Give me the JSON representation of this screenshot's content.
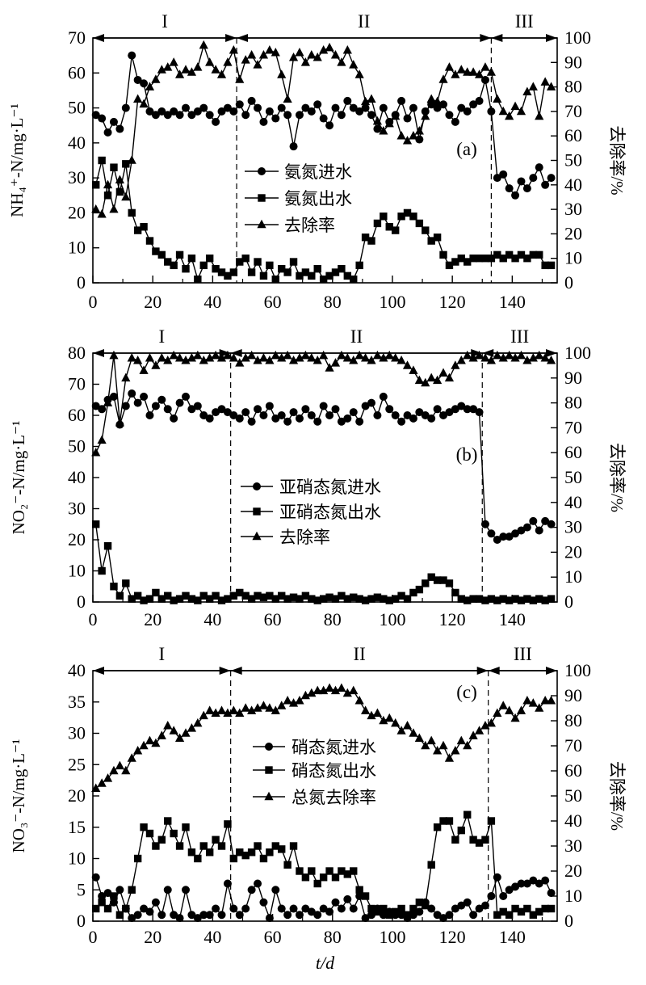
{
  "figure": {
    "background": "#ffffff",
    "ink_color": "#000000",
    "x_axis_label": "t/d",
    "x_ticks": [
      0,
      20,
      40,
      60,
      80,
      100,
      120,
      140
    ],
    "x_max": 155
  },
  "chart_data": [
    {
      "panel": "a",
      "label": "(a)",
      "type": "line",
      "ylabel_left": "NH₄⁺-N/mg·L⁻¹",
      "ylabel_right": "去除率/%",
      "ylim_left": [
        0,
        70
      ],
      "yticks_left": [
        0,
        10,
        20,
        30,
        40,
        50,
        60,
        70
      ],
      "ylim_right": [
        0,
        100
      ],
      "yticks_right": [
        0,
        10,
        20,
        30,
        40,
        50,
        60,
        70,
        80,
        90,
        100
      ],
      "xlim": [
        0,
        155
      ],
      "xticks": [
        0,
        20,
        40,
        60,
        80,
        100,
        120,
        140
      ],
      "xlabel": "",
      "phases": {
        "labels": [
          "I",
          "II",
          "III"
        ],
        "boundaries": [
          48,
          133
        ]
      },
      "x": [
        1,
        3,
        5,
        7,
        9,
        11,
        13,
        15,
        17,
        19,
        21,
        23,
        25,
        27,
        29,
        31,
        33,
        35,
        37,
        39,
        41,
        43,
        45,
        47,
        49,
        51,
        53,
        55,
        57,
        59,
        61,
        63,
        65,
        67,
        69,
        71,
        73,
        75,
        77,
        79,
        81,
        83,
        85,
        87,
        89,
        91,
        93,
        95,
        97,
        99,
        101,
        103,
        105,
        107,
        109,
        111,
        113,
        115,
        117,
        119,
        121,
        123,
        125,
        127,
        129,
        131,
        133,
        135,
        137,
        139,
        141,
        143,
        145,
        147,
        149,
        151,
        153
      ],
      "series": [
        {
          "id": "nh4-influent",
          "name": "氨氮进水",
          "marker": "circle",
          "axis": "left",
          "y": [
            48,
            47,
            43,
            46,
            44,
            50,
            65,
            58,
            57,
            49,
            48,
            49,
            48,
            49,
            48,
            50,
            48,
            49,
            50,
            48,
            46,
            49,
            50,
            49,
            51,
            48,
            52,
            50,
            46,
            49,
            47,
            50,
            48,
            39,
            48,
            50,
            49,
            51,
            47,
            45,
            50,
            48,
            52,
            50,
            49,
            50,
            48,
            44,
            50,
            46,
            48,
            52,
            47,
            50,
            41,
            49,
            51,
            50,
            51,
            48,
            46,
            50,
            49,
            51,
            52,
            58,
            49,
            30,
            31,
            27,
            25,
            29,
            27,
            30,
            33,
            28,
            30
          ]
        },
        {
          "id": "nh4-effluent",
          "name": "氨氮出水",
          "marker": "square",
          "axis": "left",
          "y": [
            28,
            35,
            25,
            33,
            26,
            34,
            20,
            15,
            16,
            12,
            9,
            8,
            6,
            5,
            8,
            4,
            7,
            1,
            5,
            7,
            4,
            3,
            2,
            3,
            6,
            7,
            3,
            6,
            2,
            5,
            1,
            4,
            3,
            6,
            2,
            3,
            2,
            4,
            1,
            2,
            3,
            4,
            2,
            1,
            5,
            13,
            12,
            17,
            19,
            16,
            15,
            19,
            20,
            19,
            17,
            15,
            12,
            13,
            8,
            5,
            6,
            7,
            6,
            7,
            7,
            7,
            7,
            8,
            7,
            8,
            7,
            8,
            7,
            8,
            8,
            5,
            5
          ]
        },
        {
          "id": "nh4-removal",
          "name": "去除率",
          "marker": "triangle",
          "axis": "right",
          "y": [
            30,
            28,
            40,
            30,
            42,
            35,
            50,
            75,
            73,
            80,
            83,
            87,
            88,
            90,
            85,
            87,
            86,
            88,
            97,
            90,
            87,
            85,
            90,
            95,
            83,
            91,
            93,
            89,
            93,
            95,
            94,
            85,
            75,
            92,
            94,
            90,
            93,
            92,
            95,
            96,
            93,
            90,
            95,
            89,
            85,
            74,
            75,
            66,
            62,
            65,
            68,
            60,
            58,
            60,
            62,
            68,
            75,
            74,
            83,
            88,
            85,
            87,
            86,
            86,
            85,
            88,
            86,
            75,
            70,
            68,
            72,
            70,
            78,
            80,
            68,
            82,
            80
          ]
        }
      ]
    },
    {
      "panel": "b",
      "label": "(b)",
      "type": "line",
      "ylabel_left": "NO₂⁻-N/mg·L⁻¹",
      "ylabel_right": "去除率/%",
      "ylim_left": [
        0,
        80
      ],
      "yticks_left": [
        0,
        10,
        20,
        30,
        40,
        50,
        60,
        70,
        80
      ],
      "ylim_right": [
        0,
        100
      ],
      "yticks_right": [
        0,
        10,
        20,
        30,
        40,
        50,
        60,
        70,
        80,
        90,
        100
      ],
      "xlim": [
        0,
        155
      ],
      "xticks": [
        0,
        20,
        40,
        60,
        80,
        100,
        120,
        140
      ],
      "xlabel": "",
      "phases": {
        "labels": [
          "I",
          "II",
          "III"
        ],
        "boundaries": [
          46,
          130
        ]
      },
      "x": [
        1,
        3,
        5,
        7,
        9,
        11,
        13,
        15,
        17,
        19,
        21,
        23,
        25,
        27,
        29,
        31,
        33,
        35,
        37,
        39,
        41,
        43,
        45,
        47,
        49,
        51,
        53,
        55,
        57,
        59,
        61,
        63,
        65,
        67,
        69,
        71,
        73,
        75,
        77,
        79,
        81,
        83,
        85,
        87,
        89,
        91,
        93,
        95,
        97,
        99,
        101,
        103,
        105,
        107,
        109,
        111,
        113,
        115,
        117,
        119,
        121,
        123,
        125,
        127,
        129,
        131,
        133,
        135,
        137,
        139,
        141,
        143,
        145,
        147,
        149,
        151,
        153
      ],
      "series": [
        {
          "id": "no2-influent",
          "name": "亚硝态氮进水",
          "marker": "circle",
          "axis": "left",
          "y": [
            63,
            62,
            65,
            66,
            57,
            63,
            67,
            64,
            66,
            60,
            63,
            65,
            62,
            59,
            64,
            66,
            62,
            63,
            60,
            59,
            61,
            62,
            61,
            60,
            59,
            61,
            58,
            62,
            60,
            63,
            59,
            60,
            58,
            61,
            59,
            62,
            60,
            58,
            63,
            60,
            62,
            58,
            59,
            61,
            58,
            63,
            64,
            60,
            66,
            62,
            60,
            58,
            60,
            59,
            61,
            60,
            59,
            62,
            60,
            61,
            62,
            63,
            62,
            62,
            61,
            25,
            22,
            20,
            21,
            21,
            22,
            23,
            24,
            26,
            23,
            26,
            25
          ]
        },
        {
          "id": "no2-effluent",
          "name": "亚硝态氮出水",
          "marker": "square",
          "axis": "left",
          "y": [
            25,
            10,
            18,
            5,
            2,
            6,
            1,
            2,
            0.5,
            1,
            3,
            1,
            2,
            0.5,
            1,
            2,
            1,
            0.5,
            2,
            1,
            2,
            0.5,
            1,
            2,
            3,
            2,
            1,
            2,
            1.5,
            2,
            1,
            2,
            1,
            1.5,
            1,
            2,
            1,
            0.5,
            1,
            1.5,
            1,
            2,
            1,
            1.5,
            1,
            0.5,
            1,
            1.5,
            1,
            0.5,
            1,
            2,
            1,
            3,
            4,
            6,
            8,
            7,
            7,
            6,
            3,
            1,
            0.5,
            1,
            1,
            0.5,
            1,
            0.5,
            1,
            0.5,
            1,
            0.5,
            1,
            0.5,
            1,
            0.5,
            1
          ]
        },
        {
          "id": "no2-removal",
          "name": "去除率",
          "marker": "triangle",
          "axis": "right",
          "y": [
            60,
            65,
            80,
            99,
            72,
            90,
            98,
            97,
            93,
            98,
            95,
            98,
            97,
            99,
            98,
            97,
            98,
            99,
            97,
            98,
            99,
            98,
            99,
            98,
            96,
            98,
            99,
            97,
            98,
            97,
            99,
            98,
            99,
            97,
            98,
            99,
            98,
            97,
            99,
            94,
            96,
            99,
            98,
            97,
            99,
            98,
            97,
            99,
            98,
            99,
            98,
            97,
            95,
            93,
            89,
            88,
            90,
            89,
            92,
            90,
            95,
            97,
            99,
            98,
            99,
            98,
            97,
            99,
            98,
            99,
            98,
            99,
            97,
            98,
            99,
            98,
            97
          ]
        }
      ]
    },
    {
      "panel": "c",
      "label": "(c)",
      "type": "line",
      "ylabel_left": "NO₃⁻-N/mg·L⁻¹",
      "ylabel_right": "去除率/%",
      "ylim_left": [
        0,
        40
      ],
      "yticks_left": [
        0,
        5,
        10,
        15,
        20,
        25,
        30,
        35,
        40
      ],
      "ylim_right": [
        0,
        100
      ],
      "yticks_right": [
        0,
        10,
        20,
        30,
        40,
        50,
        60,
        70,
        80,
        90,
        100
      ],
      "xlim": [
        0,
        155
      ],
      "xticks": [
        0,
        20,
        40,
        60,
        80,
        100,
        120,
        140
      ],
      "xlabel": "t/d",
      "phases": {
        "labels": [
          "I",
          "II",
          "III"
        ],
        "boundaries": [
          46,
          132
        ]
      },
      "x": [
        1,
        3,
        5,
        7,
        9,
        11,
        13,
        15,
        17,
        19,
        21,
        23,
        25,
        27,
        29,
        31,
        33,
        35,
        37,
        39,
        41,
        43,
        45,
        47,
        49,
        51,
        53,
        55,
        57,
        59,
        61,
        63,
        65,
        67,
        69,
        71,
        73,
        75,
        77,
        79,
        81,
        83,
        85,
        87,
        89,
        91,
        93,
        95,
        97,
        99,
        101,
        103,
        105,
        107,
        109,
        111,
        113,
        115,
        117,
        119,
        121,
        123,
        125,
        127,
        129,
        131,
        133,
        135,
        137,
        139,
        141,
        143,
        145,
        147,
        149,
        151,
        153
      ],
      "series": [
        {
          "id": "no3-influent",
          "name": "硝态氮进水",
          "marker": "circle",
          "axis": "left",
          "y": [
            7,
            4,
            4.5,
            3,
            5,
            2,
            0.5,
            1,
            2,
            1.5,
            3,
            1,
            5,
            1,
            0.5,
            5,
            1,
            0.5,
            1,
            1,
            2,
            1,
            6,
            2,
            1,
            2,
            5,
            6,
            3,
            0.5,
            5,
            2,
            1,
            2,
            1,
            2,
            1.5,
            1,
            2,
            1.5,
            3,
            2,
            3.5,
            2,
            4,
            0.5,
            1,
            2,
            1,
            1.5,
            1,
            1,
            0.5,
            1,
            1.5,
            3,
            2,
            1,
            0.5,
            1,
            2,
            2.5,
            3,
            1,
            2,
            2.5,
            4,
            7,
            4,
            5,
            5.5,
            6,
            6,
            6.5,
            6,
            6.5,
            4.5
          ]
        },
        {
          "id": "no3-effluent",
          "name": "硝态氮出水",
          "marker": "square",
          "axis": "left",
          "y": [
            2,
            3,
            2,
            4,
            1,
            2,
            5,
            10,
            15,
            14,
            12,
            13,
            16,
            14,
            12,
            15,
            11,
            10,
            12,
            11,
            13,
            12,
            15.5,
            10,
            11,
            10.5,
            11,
            12,
            10,
            11,
            12,
            11.5,
            9,
            12,
            8,
            7,
            8,
            6,
            7,
            8,
            7,
            8,
            7.5,
            8,
            5,
            4,
            2,
            1.5,
            2,
            1,
            1.5,
            2,
            1,
            2,
            3,
            2.5,
            9,
            15,
            16,
            16,
            13,
            14.5,
            17,
            13,
            12.5,
            13,
            16,
            1,
            1.5,
            1,
            2,
            1.5,
            2,
            1,
            1.5,
            2,
            2
          ]
        },
        {
          "id": "tn-removal",
          "name": "总氮去除率",
          "marker": "triangle",
          "axis": "right",
          "y": [
            53,
            55,
            57,
            60,
            62,
            60,
            65,
            68,
            70,
            72,
            71,
            74,
            78,
            76,
            73,
            75,
            77,
            79,
            82,
            84,
            83,
            84,
            83,
            84,
            83,
            85,
            84,
            85,
            86,
            85,
            84,
            86,
            88,
            87,
            88,
            90,
            91,
            92,
            92,
            93,
            92,
            93,
            91,
            92,
            88,
            84,
            82,
            83,
            80,
            81,
            79,
            76,
            78,
            75,
            73,
            70,
            72,
            68,
            70,
            65,
            68,
            72,
            70,
            74,
            76,
            78,
            79,
            83,
            86,
            84,
            81,
            84,
            88,
            87,
            85,
            88,
            88
          ]
        }
      ]
    }
  ]
}
